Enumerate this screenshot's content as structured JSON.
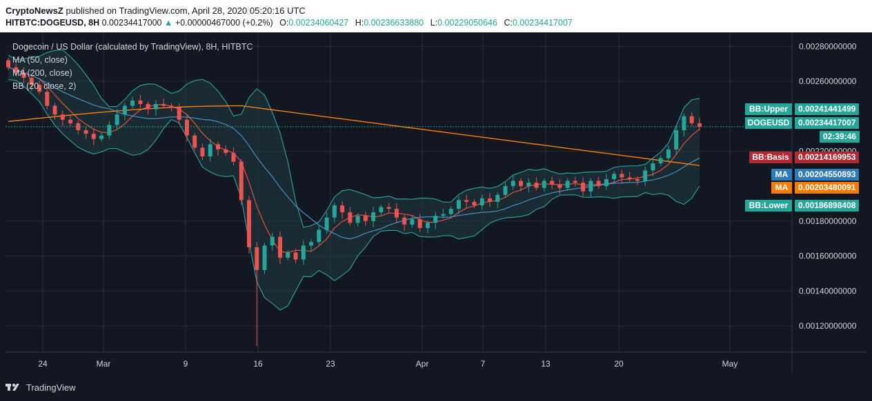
{
  "header": {
    "author": "CryptoNewsZ",
    "published": "published on TradingView.com, April 28, 2020 05:20:16 UTC",
    "symbol": "HITBTC:DOGEUSD, 8H",
    "last": "0.00234417000",
    "change": "+0.00000467000 (+0.2%)",
    "o_label": "O:",
    "o": "0.00234060427",
    "h_label": "H:",
    "h": "0.00236633880",
    "l_label": "L:",
    "l": "0.00229050646",
    "c_label": "C:",
    "c": "0.00234417007"
  },
  "legend": {
    "title": "Dogecoin / US Dollar (calculated by TradingView), 8H, HITBTC",
    "ma50": "MA (50, close)",
    "ma200": "MA (200, close)",
    "bb": "BB (20, close, 2)"
  },
  "badges": {
    "bb_upper": {
      "name": "BB:Upper",
      "value": "0.00241441499"
    },
    "price": {
      "name": "DOGEUSD",
      "value": "0.00234417007"
    },
    "countdown": "02:39:46",
    "bb_basis": {
      "name": "BB:Basis",
      "value": "0.00214169953"
    },
    "ma1": {
      "name": "MA",
      "value": "0.00204550893"
    },
    "ma2": {
      "name": "MA",
      "value": "0.00203480091"
    },
    "bb_lower": {
      "name": "BB:Lower",
      "value": "0.00186898408"
    }
  },
  "footer": {
    "brand": "TradingView"
  },
  "colors": {
    "up": "#26a69a",
    "down": "#ef5350",
    "ma50": "#e5533c",
    "ma200": "#ff7f0e",
    "bb": "#2a9d9f",
    "bb_fill": "#1f3a40",
    "grid": "#2a2e39",
    "text": "#d1d4dc"
  },
  "chart_data": {
    "type": "candlestick",
    "ylim": [
      0.00105,
      0.00288
    ],
    "y_ticks": [
      "0.00280000000",
      "0.00260000000",
      "0.00220000000",
      "0.00180000000",
      "0.00160000000",
      "0.00140000000",
      "0.00120000000"
    ],
    "x_ticks": [
      "24",
      "Mar",
      "9",
      "16",
      "23",
      "Apr",
      "7",
      "13",
      "20",
      "May"
    ],
    "close": [
      0.00268,
      0.00265,
      0.00262,
      0.00258,
      0.00254,
      0.00246,
      0.00241,
      0.00238,
      0.00236,
      0.00232,
      0.0023,
      0.00227,
      0.00229,
      0.00235,
      0.00241,
      0.00246,
      0.00249,
      0.00247,
      0.00244,
      0.00247,
      0.00246,
      0.00245,
      0.00238,
      0.00229,
      0.00222,
      0.00217,
      0.00224,
      0.00221,
      0.00219,
      0.00214,
      0.00192,
      0.00165,
      0.00152,
      0.00166,
      0.00171,
      0.00159,
      0.00162,
      0.00158,
      0.00166,
      0.00168,
      0.00175,
      0.00182,
      0.00189,
      0.00185,
      0.00179,
      0.00183,
      0.0018,
      0.00185,
      0.00188,
      0.00187,
      0.00182,
      0.00178,
      0.00181,
      0.00176,
      0.00179,
      0.00183,
      0.00184,
      0.00187,
      0.00192,
      0.00191,
      0.00189,
      0.00193,
      0.00191,
      0.00195,
      0.002,
      0.00203,
      0.002,
      0.00202,
      0.00199,
      0.00203,
      0.00201,
      0.00199,
      0.00203,
      0.00202,
      0.00197,
      0.00203,
      0.002,
      0.00204,
      0.00207,
      0.00205,
      0.00204,
      0.00203,
      0.00209,
      0.00213,
      0.00216,
      0.00221,
      0.00232,
      0.0024,
      0.00236,
      0.00234
    ]
  }
}
